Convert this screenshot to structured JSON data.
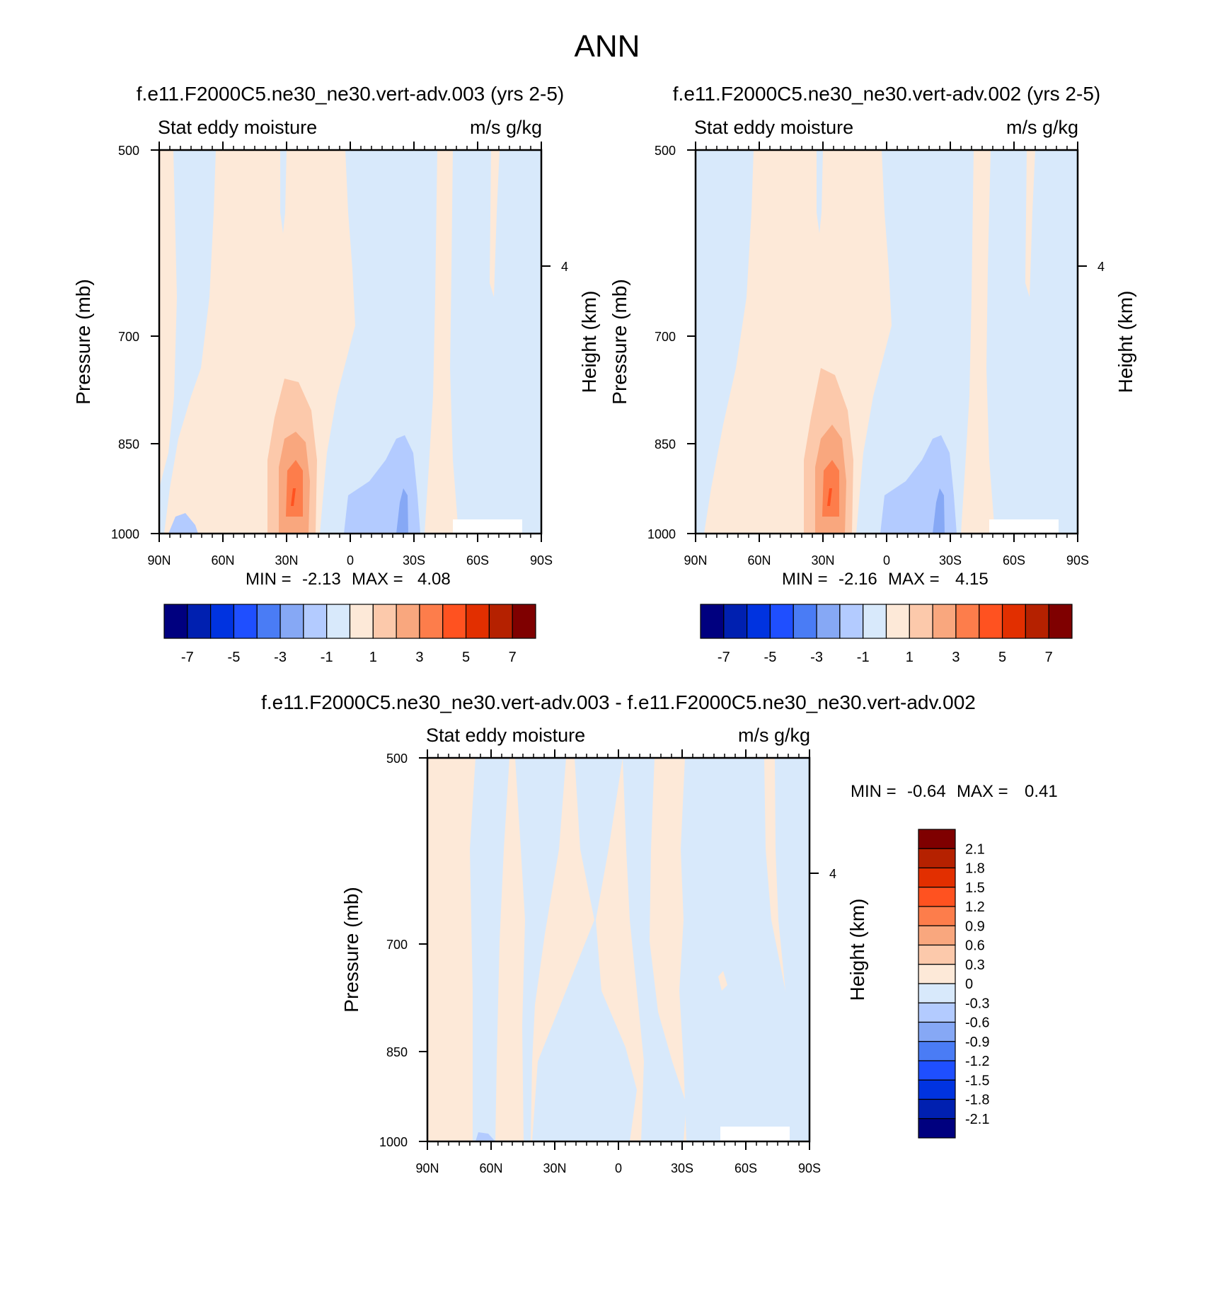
{
  "figure": {
    "title": "ANN"
  },
  "colors": {
    "main_scale": [
      "#00007f",
      "#0020b0",
      "#0033e0",
      "#1f4fff",
      "#4a7cf5",
      "#86a8f5",
      "#b3cbff",
      "#d8e9fb",
      "#fde9d8",
      "#fcc9ab",
      "#f9a77e",
      "#fd7d4b",
      "#ff5220",
      "#e22f00",
      "#b52100",
      "#7f0000"
    ],
    "diff_scale": [
      "#00007f",
      "#0020b0",
      "#0033e0",
      "#1f4fff",
      "#4a7cf5",
      "#86a8f5",
      "#b3cbff",
      "#d8e9fb",
      "#fde9d8",
      "#fcc9ab",
      "#f9a77e",
      "#fd7d4b",
      "#ff5220",
      "#e22f00",
      "#b52100",
      "#7f0000"
    ]
  },
  "chart_data": [
    {
      "type": "heatmap",
      "title": "f.e11.F2000C5.ne30_ne30.vert-adv.003 (yrs 2-5)",
      "left_label": "Stat eddy moisture",
      "right_label": "m/s g/kg",
      "ylabel": "Pressure (mb)",
      "y2label": "Height (km)",
      "x_ticks": [
        "90N",
        "60N",
        "30N",
        "0",
        "30S",
        "60S",
        "90S"
      ],
      "y_ticks": [
        "500",
        "700",
        "850",
        "1000"
      ],
      "y2_ticks": [
        "4"
      ],
      "min_max": {
        "min_label": "MIN =",
        "min": "-2.13",
        "max_label": "MAX =",
        "max": "4.08"
      },
      "colorbar_labels": [
        "-7",
        "-5",
        "-3",
        "-1",
        "1",
        "3",
        "5",
        "7"
      ]
    },
    {
      "type": "heatmap",
      "title": "f.e11.F2000C5.ne30_ne30.vert-adv.002 (yrs 2-5)",
      "left_label": "Stat eddy moisture",
      "right_label": "m/s g/kg",
      "ylabel": "Pressure (mb)",
      "y2label": "Height (km)",
      "x_ticks": [
        "90N",
        "60N",
        "30N",
        "0",
        "30S",
        "60S",
        "90S"
      ],
      "y_ticks": [
        "500",
        "700",
        "850",
        "1000"
      ],
      "y2_ticks": [
        "4"
      ],
      "min_max": {
        "min_label": "MIN =",
        "min": "-2.16",
        "max_label": "MAX =",
        "max": "4.15"
      },
      "colorbar_labels": [
        "-7",
        "-5",
        "-3",
        "-1",
        "1",
        "3",
        "5",
        "7"
      ]
    },
    {
      "type": "heatmap",
      "title": "f.e11.F2000C5.ne30_ne30.vert-adv.003 - f.e11.F2000C5.ne30_ne30.vert-adv.002",
      "left_label": "Stat eddy moisture",
      "right_label": "m/s g/kg",
      "ylabel": "Pressure (mb)",
      "y2label": "Height (km)",
      "x_ticks": [
        "90N",
        "60N",
        "30N",
        "0",
        "30S",
        "60S",
        "90S"
      ],
      "y_ticks": [
        "500",
        "700",
        "850",
        "1000"
      ],
      "y2_ticks": [
        "4"
      ],
      "min_max": {
        "min_label": "MIN =",
        "min": "-0.64",
        "max_label": "MAX =",
        "max": "0.41"
      },
      "colorbar_labels": [
        "2.1",
        "1.8",
        "1.5",
        "1.2",
        "0.9",
        "0.6",
        "0.3",
        "0",
        "-0.3",
        "-0.6",
        "-0.9",
        "-1.2",
        "-1.5",
        "-1.8",
        "-2.1"
      ]
    }
  ]
}
